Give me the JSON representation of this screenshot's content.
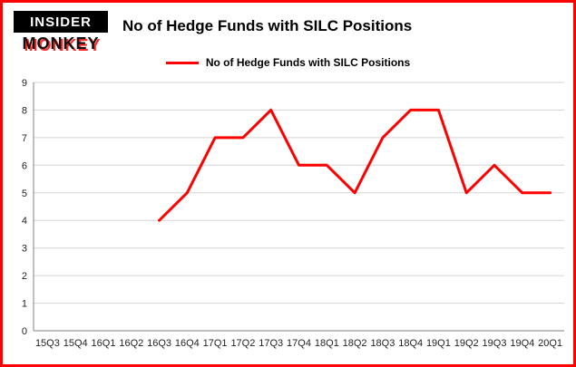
{
  "brand": {
    "logo_line1": "INSIDER",
    "logo_line2": "MONKEY"
  },
  "header": {
    "title": "No of Hedge Funds with SILC Positions"
  },
  "legend": {
    "label": "No of Hedge Funds with SILC Positions",
    "color": "#ff0000"
  },
  "colors": {
    "border": "#fe0000",
    "line": "#ff0000",
    "grid": "#d3d3d3",
    "axis": "#808080"
  },
  "chart_data": {
    "type": "line",
    "title": "No of Hedge Funds with SILC Positions",
    "categories": [
      "15Q3",
      "15Q4",
      "16Q1",
      "16Q2",
      "16Q3",
      "16Q4",
      "17Q1",
      "17Q2",
      "17Q3",
      "17Q4",
      "18Q1",
      "18Q2",
      "18Q3",
      "18Q4",
      "19Q1",
      "19Q2",
      "19Q3",
      "19Q4",
      "20Q1"
    ],
    "series": [
      {
        "name": "No of Hedge Funds with SILC Positions",
        "color": "#ff0000",
        "values": [
          null,
          null,
          null,
          null,
          4,
          5,
          7,
          7,
          8,
          6,
          6,
          5,
          7,
          8,
          8,
          5,
          6,
          5,
          5
        ]
      }
    ],
    "ylim": [
      0,
      9
    ],
    "ytick_interval": 1,
    "grid": true,
    "legend_position": "top-center",
    "xlabel": "",
    "ylabel": ""
  }
}
